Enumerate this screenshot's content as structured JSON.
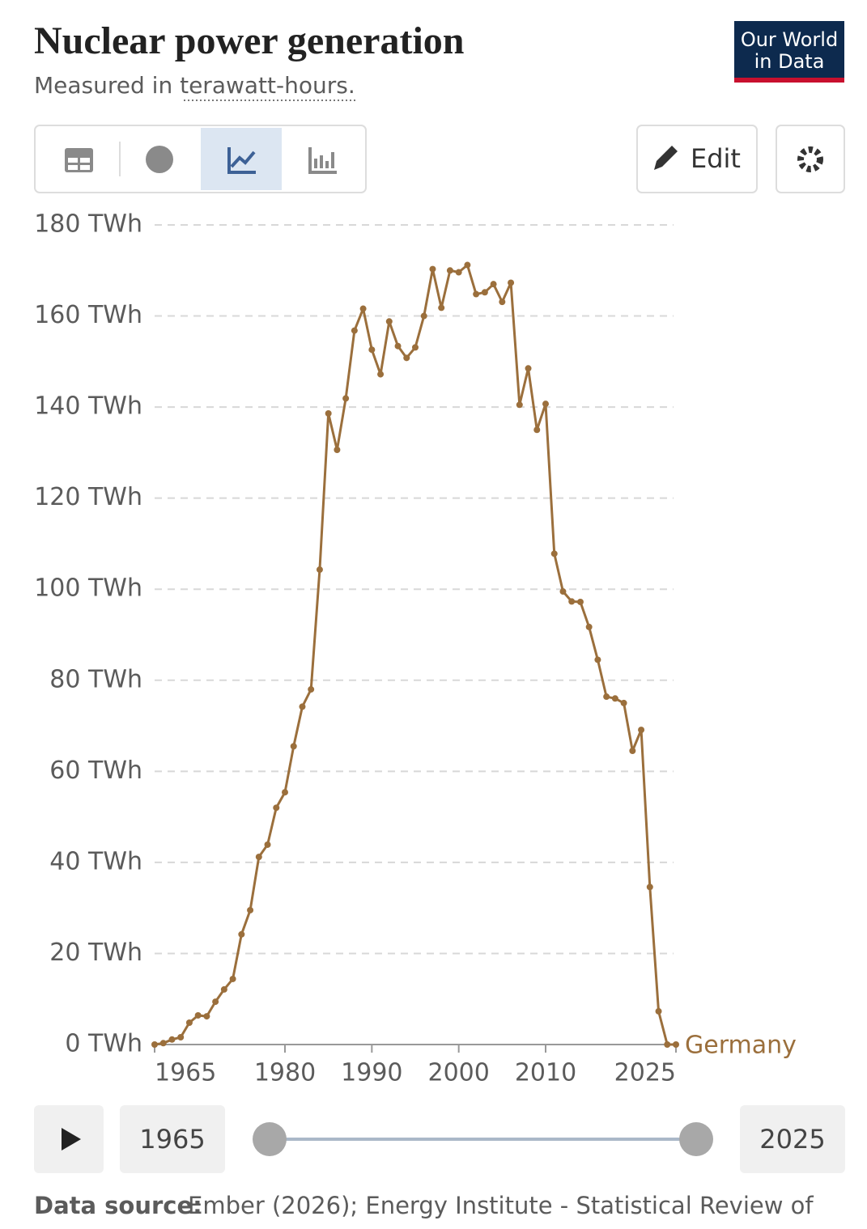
{
  "header": {
    "logo_line1": "Our World",
    "logo_line2": "in Data",
    "edit": "Edit"
  },
  "chart_data": {
    "type": "line",
    "title": "Nuclear power generation",
    "subtitle": "Measured in terawatt-hours.",
    "x": [
      1965,
      1966,
      1967,
      1968,
      1969,
      1970,
      1971,
      1972,
      1973,
      1974,
      1975,
      1976,
      1977,
      1978,
      1979,
      1980,
      1981,
      1982,
      1983,
      1984,
      1985,
      1986,
      1987,
      1988,
      1989,
      1990,
      1991,
      1992,
      1993,
      1994,
      1995,
      1996,
      1997,
      1998,
      1999,
      2000,
      2001,
      2002,
      2003,
      2004,
      2005,
      2006,
      2007,
      2008,
      2009,
      2010,
      2011,
      2012,
      2013,
      2014,
      2015,
      2016,
      2017,
      2018,
      2019,
      2020,
      2021,
      2022,
      2023,
      2024,
      2025
    ],
    "series": [
      {
        "name": "Germany",
        "color": "#9b6f3c",
        "values": [
          0,
          0.3,
          1.1,
          1.6,
          4.8,
          6.4,
          6.2,
          9.4,
          12.1,
          14.4,
          24.2,
          29.5,
          41.2,
          43.9,
          52.0,
          55.4,
          65.5,
          74.2,
          78.0,
          104.3,
          138.6,
          130.6,
          141.9,
          156.8,
          161.6,
          152.6,
          147.2,
          158.8,
          153.4,
          150.8,
          153.1,
          160.0,
          170.3,
          161.8,
          170.0,
          169.6,
          171.2,
          164.8,
          165.2,
          167.0,
          163.1,
          167.3,
          140.5,
          148.5,
          135.0,
          140.7,
          107.8,
          99.5,
          97.3,
          97.2,
          91.7,
          84.5,
          76.4,
          76.0,
          75.0,
          64.5,
          69.1,
          34.6,
          7.3,
          0,
          0
        ]
      }
    ],
    "xlim": [
      1965,
      2025
    ],
    "xticks": [
      1965,
      1980,
      1990,
      2000,
      2010,
      2025
    ],
    "ylim": [
      0,
      180
    ],
    "yticks": [
      {
        "value": 0,
        "label": "0 TWh"
      },
      {
        "value": 20,
        "label": "20 TWh"
      },
      {
        "value": 40,
        "label": "40 TWh"
      },
      {
        "value": 60,
        "label": "60 TWh"
      },
      {
        "value": 80,
        "label": "80 TWh"
      },
      {
        "value": 100,
        "label": "100 TWh"
      },
      {
        "value": 120,
        "label": "120 TWh"
      },
      {
        "value": 140,
        "label": "140 TWh"
      },
      {
        "value": 160,
        "label": "160 TWh"
      },
      {
        "value": 180,
        "label": "180 TWh"
      }
    ],
    "grid": true
  },
  "timeline": {
    "start": 1965,
    "end": 2025
  },
  "footer": {
    "source_label": "Data source:",
    "source_text": "Ember (2026); Energy Institute - Statistical Review of"
  }
}
